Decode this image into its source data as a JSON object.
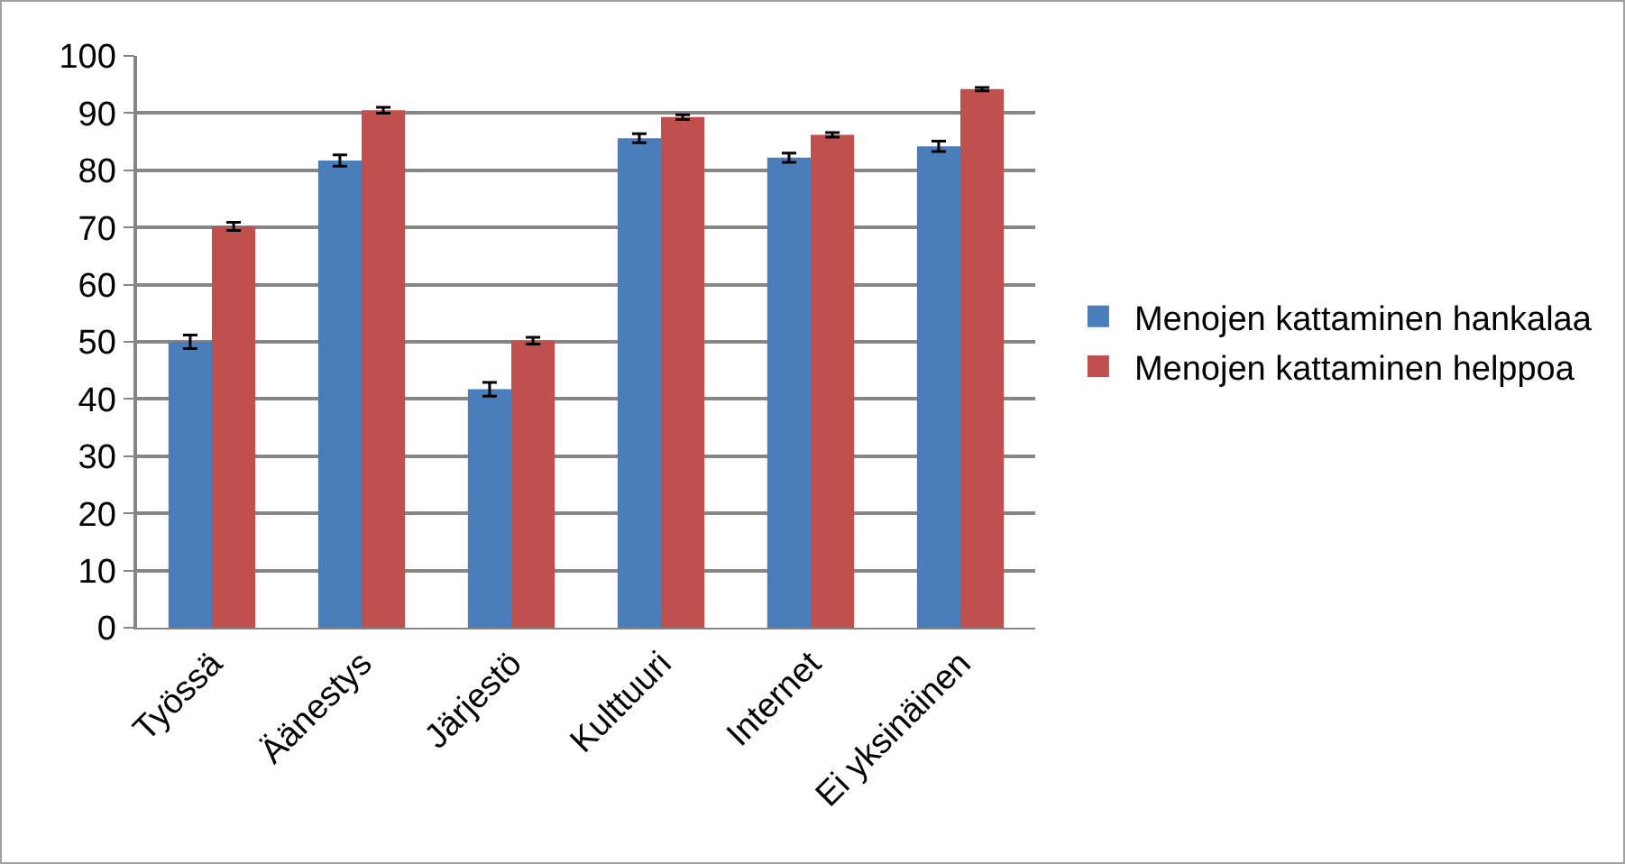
{
  "chart_data": {
    "type": "bar",
    "categories": [
      "Työssä",
      "Äänestys",
      "Järjestö",
      "Kulttuuri",
      "Internet",
      "Ei yksinäinen"
    ],
    "series": [
      {
        "name": "Menojen kattaminen hankalaa",
        "color": "#4a7ebb",
        "values": [
          50,
          81.7,
          41.7,
          85.6,
          82.2,
          84.2
        ],
        "errors": [
          1.2,
          1,
          1.2,
          0.8,
          0.8,
          0.9
        ]
      },
      {
        "name": "Menojen kattaminen helppoa",
        "color": "#c0504d",
        "values": [
          70.2,
          90.5,
          50.2,
          89.3,
          86.2,
          94.2
        ],
        "errors": [
          0.7,
          0.5,
          0.6,
          0.4,
          0.4,
          0.3
        ]
      }
    ],
    "ylim": [
      0,
      100
    ],
    "yticks": [
      0,
      10,
      20,
      30,
      40,
      50,
      60,
      70,
      80,
      90,
      100
    ],
    "grid": "y",
    "legend": "right"
  }
}
